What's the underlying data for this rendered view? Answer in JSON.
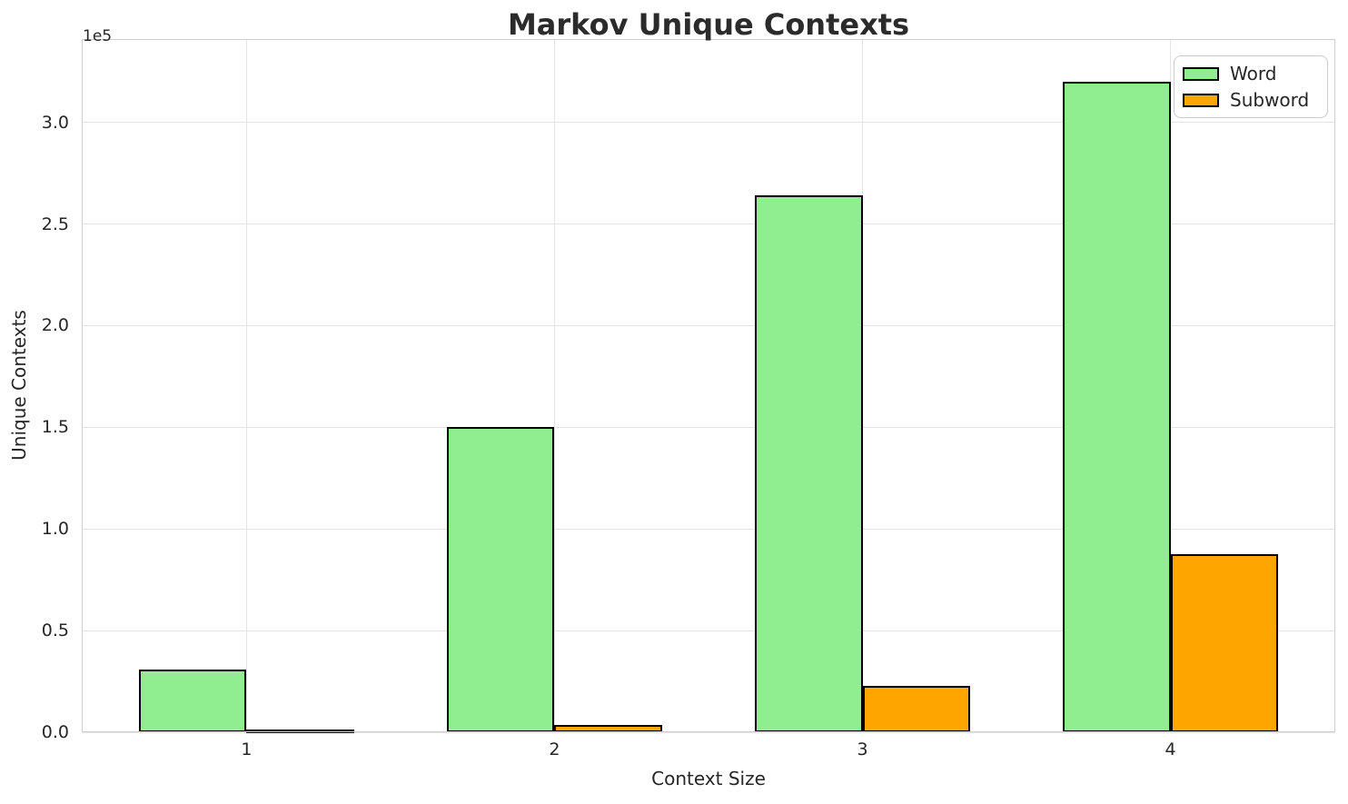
{
  "chart_data": {
    "type": "bar",
    "title": "Markov Unique Contexts",
    "xlabel": "Context Size",
    "ylabel": "Unique Contexts",
    "y_offset_text": "1e5",
    "categories": [
      "1",
      "2",
      "3",
      "4"
    ],
    "series": [
      {
        "name": "Word",
        "color": "#90EE90",
        "values": [
          31000,
          150000,
          264000,
          320000
        ]
      },
      {
        "name": "Subword",
        "color": "#FFA500",
        "values": [
          500,
          3600,
          22800,
          87500
        ]
      }
    ],
    "bar_edge_color": "#000000",
    "bar_width_units": 0.35,
    "ylim": [
      0,
      341000
    ],
    "yticks": [
      0,
      50000,
      100000,
      150000,
      200000,
      250000,
      300000
    ],
    "ytick_labels": [
      "0.0",
      "0.5",
      "1.0",
      "1.5",
      "2.0",
      "2.5",
      "3.0"
    ],
    "grid": true,
    "legend": {
      "position": "upper right",
      "entries": [
        "Word",
        "Subword"
      ]
    }
  }
}
